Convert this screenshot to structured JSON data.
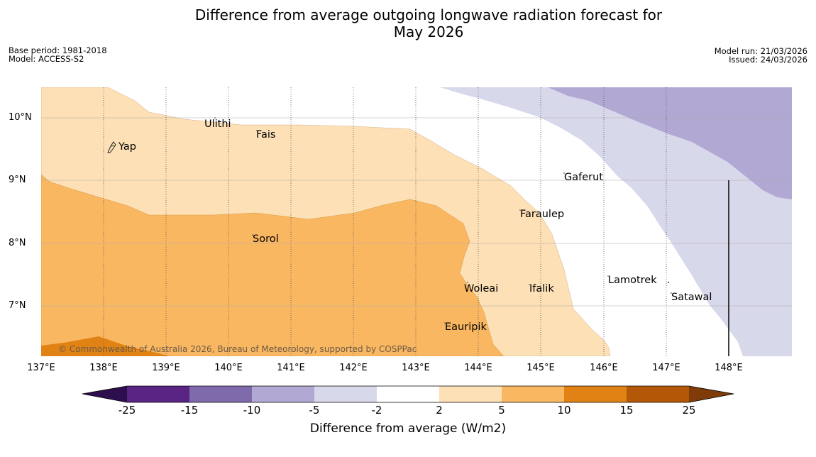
{
  "title": {
    "line1": "Difference from average outgoing longwave radiation forecast for",
    "line2": "May 2026"
  },
  "meta_left": {
    "base_period": "Base period: 1981-2018",
    "model": "Model: ACCESS-S2"
  },
  "meta_right": {
    "model_run": "Model run: 21/03/2026",
    "issued": "Issued: 24/03/2026"
  },
  "axes": {
    "lat_labels": [
      "10°N",
      "9°N",
      "8°N",
      "7°N"
    ],
    "lon_labels": [
      "137°E",
      "138°E",
      "139°E",
      "140°E",
      "141°E",
      "142°E",
      "143°E",
      "144°E",
      "145°E",
      "146°E",
      "147°E",
      "148°E"
    ]
  },
  "places": {
    "yap": "Yap",
    "ulithi": "Ulithi",
    "fais": "Fais",
    "gaferut": "Gaferut",
    "faraulep": "Faraulep",
    "sorol": "Sorol",
    "lamotrek": "Lamotrek",
    "woleai": "Woleai",
    "ifalik": "Ifalik",
    "satawal": "Satawal",
    "eauripik": "Eauripik"
  },
  "credit": "© Commonwealth of Australia 2026, Bureau of Meteorology, supported by COSPPac",
  "colorbar": {
    "ticks": [
      "-25",
      "-15",
      "-10",
      "-5",
      "-2",
      "2",
      "5",
      "10",
      "15",
      "25"
    ],
    "label": "Difference from average (W/m2)",
    "colors": {
      "below_-25": "#2d0f4f",
      "-25_-15": "#5a2485",
      "-15_-10": "#7f6aab",
      "-10_-5": "#b1a9d3",
      "-5_-2": "#d8d8eb",
      "-2_2": "#ffffff",
      "2_5": "#fde0b6",
      "5_10": "#fab762",
      "10_15": "#e08214",
      "15_25": "#b35806",
      "above_25": "#7f3b08"
    }
  }
}
